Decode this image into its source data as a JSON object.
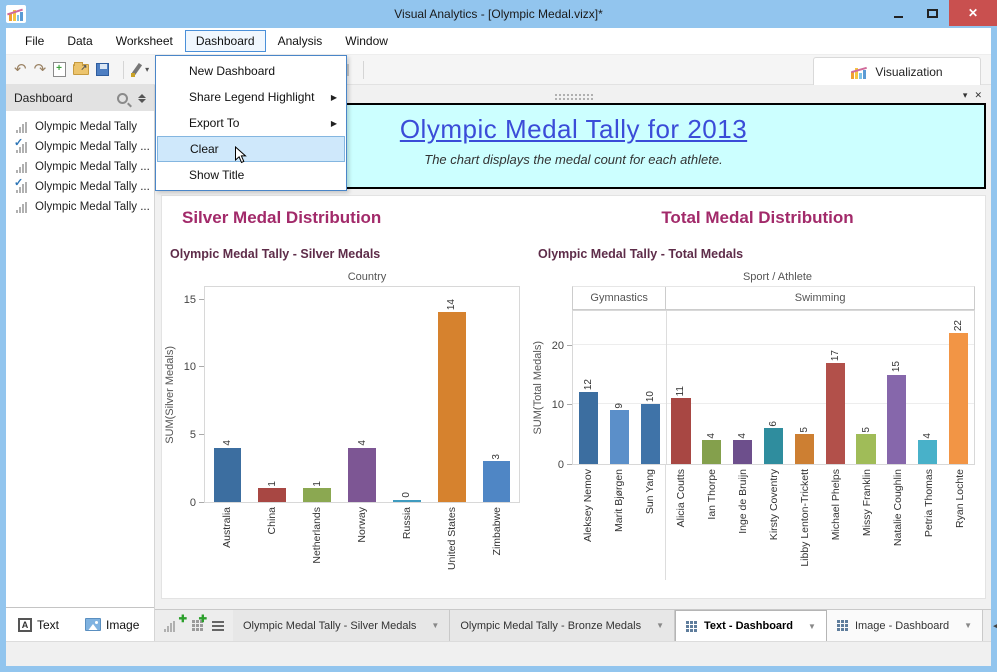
{
  "window": {
    "title": "Visual Analytics - [Olympic Medal.vizx]*"
  },
  "menu": {
    "items": [
      "File",
      "Data",
      "Worksheet",
      "Dashboard",
      "Analysis",
      "Window"
    ],
    "open_item": "Dashboard",
    "dropdown": [
      {
        "label": "New Dashboard",
        "submenu": false,
        "highlighted": false
      },
      {
        "label": "Share Legend Highlight",
        "submenu": true,
        "highlighted": false
      },
      {
        "label": "Export To",
        "submenu": true,
        "highlighted": false
      },
      {
        "label": "Clear",
        "submenu": false,
        "highlighted": true
      },
      {
        "label": "Show Title",
        "submenu": false,
        "highlighted": false
      }
    ]
  },
  "toolbar": {
    "visualization_label": "Visualization"
  },
  "sidebar": {
    "header": "Dashboard",
    "items": [
      {
        "label": "Olympic Medal Tally",
        "checked": false
      },
      {
        "label": "Olympic Medal Tally ...",
        "checked": true
      },
      {
        "label": "Olympic Medal Tally ...",
        "checked": false
      },
      {
        "label": "Olympic Medal Tally ...",
        "checked": true
      },
      {
        "label": "Olympic Medal Tally ...",
        "checked": false
      }
    ],
    "text_button": "Text",
    "image_button": "Image"
  },
  "dashboard_header": {
    "title": "Olympic Medal Tally for 2013",
    "subtitle": "The chart displays the medal count for each athlete.",
    "title_color": "#3b4cd8",
    "background": "#ccffff"
  },
  "chart_data": [
    {
      "type": "bar",
      "title": "Silver Medal Distribution",
      "subtitle": "Olympic Medal Tally - Silver Medals",
      "xlabel": "Country",
      "ylabel": "SUM(Silver Medals)",
      "yticks": [
        0,
        5,
        10,
        15
      ],
      "ylim": [
        0,
        16
      ],
      "grid": false,
      "legend": "none",
      "categories": [
        "Australia",
        "China",
        "Netherlands",
        "Norway",
        "Russia",
        "United States",
        "Zimbabwe"
      ],
      "values": [
        4,
        1,
        1,
        4,
        0,
        14,
        3
      ],
      "colors": [
        "#3c6ea0",
        "#a84743",
        "#8ba851",
        "#7d5694",
        "#3f9bbf",
        "#d6822e",
        "#4f86c5"
      ]
    },
    {
      "type": "bar",
      "title": "Total Medal Distribution",
      "subtitle": "Olympic Medal Tally - Total Medals",
      "xlabel": "Sport / Athlete",
      "ylabel": "SUM(Total Medals)",
      "yticks": [
        0,
        10,
        20
      ],
      "ylim": [
        0,
        26
      ],
      "grid": true,
      "legend": "none",
      "groups": [
        {
          "label": "Gymnastics",
          "span": 3
        },
        {
          "label": "Swimming",
          "span": 10
        }
      ],
      "categories": [
        "Aleksey Nemov",
        "Marit Bjørgen",
        "Sun Yang",
        "Alicia Coutts",
        "Ian Thorpe",
        "Inge de Bruijn",
        "Kirsty Coventry",
        "Libby Lenton-Trickett",
        "Michael Phelps",
        "Missy Franklin",
        "Natalie Coughlin",
        "Petria Thomas",
        "Ryan Lochte"
      ],
      "values": [
        12,
        9,
        10,
        11,
        4,
        4,
        6,
        5,
        17,
        5,
        15,
        4,
        22
      ],
      "colors": [
        "#3c6ea0",
        "#5b8fc9",
        "#3f73a8",
        "#a84743",
        "#84a04c",
        "#6d4f8c",
        "#2f8d9e",
        "#cd7f32",
        "#b2504a",
        "#a0bc58",
        "#8667ab",
        "#48b1c9",
        "#f29545"
      ]
    }
  ],
  "tabstrip": {
    "tabs": [
      {
        "label": "Olympic Medal Tally - Silver Medals",
        "kind": "worksheet",
        "active": false
      },
      {
        "label": "Olympic Medal Tally - Bronze Medals",
        "kind": "worksheet",
        "active": false
      },
      {
        "label": "Text - Dashboard",
        "kind": "dashboard",
        "active": true
      },
      {
        "label": "Image - Dashboard",
        "kind": "dashboard",
        "active": false
      }
    ]
  }
}
